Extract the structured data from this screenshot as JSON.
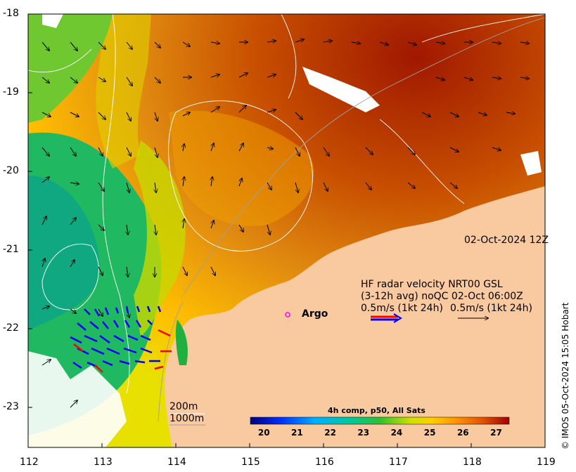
{
  "map": {
    "date_label": "02-Oct-2024 12Z",
    "lon_ticks": [
      "112",
      "113",
      "114",
      "115",
      "116",
      "117",
      "118",
      "119"
    ],
    "lat_ticks": [
      "-18",
      "-19",
      "-20",
      "-21",
      "-22",
      "-23"
    ],
    "legend": {
      "line1": "HF radar velocity  NRT00 GSL",
      "line2": "(3-12h avg) noQC 02-Oct 06:00Z",
      "line3a": "0.5m/s (1kt 24h)",
      "line3b": "0.5m/s (1kt 24h)"
    },
    "argo_label": "Argo",
    "isobath_200": "200m",
    "isobath_1000": "1000m",
    "colorbar": {
      "title": "4h comp, p50, All Sats",
      "ticks": [
        "20",
        "21",
        "22",
        "23",
        "24",
        "25",
        "26",
        "27"
      ],
      "range": [
        19.6,
        27.4
      ]
    },
    "credit": "© IMOS 05-Oct-2024 15:05 Hobart",
    "colors": {
      "land": "#f9c9a0",
      "argo": "#ff00ff",
      "radar_blue": "#0000ff",
      "radar_red": "#ff0000"
    }
  }
}
